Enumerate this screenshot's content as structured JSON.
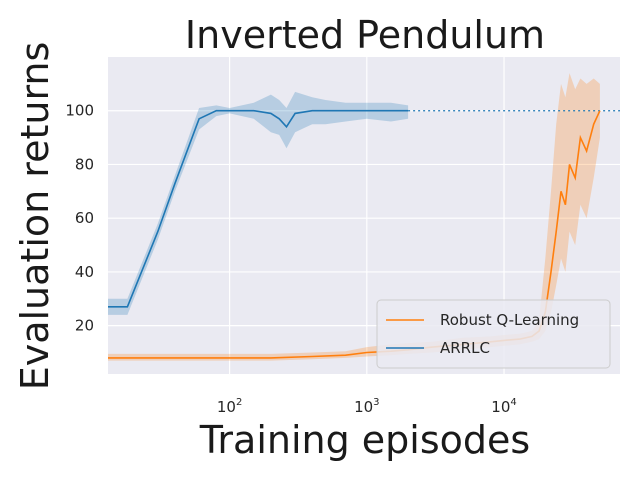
{
  "chart_data": {
    "type": "line",
    "title": "Inverted Pendulum",
    "xlabel": "Training episodes",
    "ylabel": "Evaluation returns",
    "x_scale": "log",
    "xlim": [
      13,
      70000
    ],
    "ylim": [
      2,
      120
    ],
    "x_ticks": [
      {
        "value": 100,
        "base": "10",
        "exp": "2"
      },
      {
        "value": 1000,
        "base": "10",
        "exp": "3"
      },
      {
        "value": 10000,
        "base": "10",
        "exp": "4"
      }
    ],
    "y_ticks": [
      20,
      40,
      60,
      80,
      100
    ],
    "grid": true,
    "legend_position": "lower-right",
    "reference_line": {
      "y": 100,
      "style": "dotted",
      "color": "#1f77b4"
    },
    "series": [
      {
        "name": "Robust Q-Learning",
        "color": "#ff7f0e",
        "x": [
          13,
          30,
          60,
          100,
          200,
          400,
          700,
          1000,
          1500,
          2000,
          3000,
          5000,
          8000,
          10000,
          13000,
          16000,
          18000,
          20000,
          22000,
          24000,
          26000,
          28000,
          30000,
          33000,
          36000,
          40000,
          45000,
          50000
        ],
        "y": [
          8,
          8,
          8,
          8,
          8,
          8.5,
          9,
          10,
          10.5,
          11,
          12,
          13,
          14,
          14.5,
          15,
          16,
          18,
          25,
          40,
          55,
          70,
          65,
          80,
          75,
          90,
          85,
          95,
          100
        ],
        "lower": [
          7,
          7,
          7,
          7,
          7,
          7.5,
          8,
          8.5,
          9,
          9.5,
          10,
          11,
          12,
          12.5,
          13,
          14,
          15,
          18,
          25,
          35,
          45,
          40,
          55,
          50,
          65,
          60,
          75,
          90
        ],
        "upper": [
          9.5,
          9.5,
          9.5,
          9.5,
          9.5,
          10,
          10.5,
          12,
          13,
          13.5,
          14,
          15.5,
          16,
          16.5,
          17,
          18,
          22,
          45,
          70,
          95,
          110,
          105,
          114,
          108,
          112,
          110,
          112,
          110
        ]
      },
      {
        "name": "ARRLC",
        "color": "#1f77b4",
        "x": [
          13,
          18,
          30,
          40,
          60,
          80,
          100,
          150,
          200,
          230,
          260,
          300,
          400,
          500,
          700,
          1000,
          1500,
          2000
        ],
        "y": [
          27,
          27,
          55,
          73,
          97,
          100,
          100,
          100,
          99,
          97,
          94,
          99,
          100,
          100,
          100,
          100,
          100,
          100
        ],
        "lower": [
          24,
          24,
          52,
          70,
          93,
          98,
          99,
          97,
          92,
          91,
          86,
          92,
          95,
          95,
          96,
          97,
          96,
          97
        ],
        "upper": [
          30,
          30,
          58,
          76,
          101,
          102,
          101,
          103,
          106,
          104,
          101,
          107,
          105,
          104,
          103,
          103,
          103,
          102
        ]
      }
    ]
  }
}
